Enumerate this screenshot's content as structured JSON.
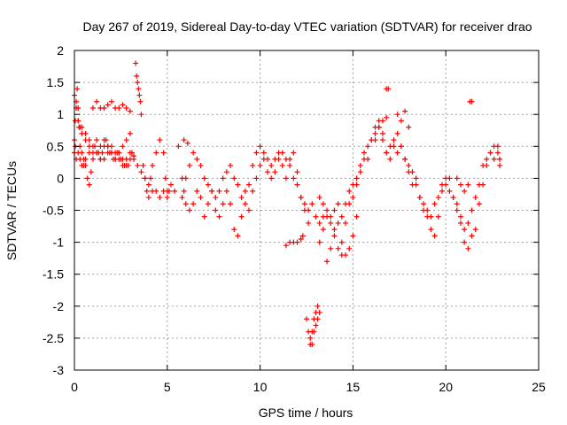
{
  "chart_data": {
    "type": "scatter",
    "title": "Day 267 of 2019, Sidereal Day-to-day VTEC variation (SDTVAR) for receiver drao",
    "xlabel": "GPS time / hours",
    "ylabel": "SDTVAR / TECUs",
    "xlim": [
      0,
      25
    ],
    "ylim": [
      -3,
      2
    ],
    "xticks": [
      0,
      5,
      10,
      15,
      20,
      25
    ],
    "xtick_labels": [
      "0",
      "5",
      "10",
      "15",
      "20",
      "25"
    ],
    "yticks": [
      -3,
      -2.5,
      -2,
      -1.5,
      -1,
      -0.5,
      0,
      0.5,
      1,
      1.5,
      2
    ],
    "ytick_labels": [
      "-3",
      "-2.5",
      "-2",
      "-1.5",
      "-1",
      "-0.5",
      "0",
      "0.5",
      "1",
      "1.5",
      "2"
    ],
    "grid": true,
    "marker": "+",
    "color": "#ff0000",
    "series": [
      {
        "name": "SDTVAR",
        "x": [
          0.0,
          0.05,
          0.1,
          0.15,
          0.2,
          0.25,
          0.3,
          0.4,
          0.5,
          0.6,
          0.7,
          0.8,
          0.9,
          1.0,
          1.1,
          1.2,
          1.3,
          1.4,
          1.5,
          1.6,
          1.7,
          1.8,
          1.9,
          2.0,
          2.1,
          2.2,
          2.3,
          2.4,
          2.5,
          2.6,
          2.7,
          2.8,
          2.9,
          3.0,
          3.1,
          3.2,
          3.3,
          3.35,
          3.4,
          3.45,
          3.5,
          3.55,
          3.6,
          3.7,
          3.8,
          3.9,
          4.0,
          4.1,
          4.2,
          4.4,
          4.6,
          4.8,
          4.9,
          5.0,
          5.1,
          5.6,
          5.8,
          5.9,
          6.0,
          6.2,
          6.4,
          6.6,
          6.8,
          7.0,
          7.2,
          7.4,
          7.6,
          7.8,
          8.0,
          8.2,
          8.4,
          8.6,
          8.8,
          9.0,
          9.2,
          9.4,
          9.6,
          9.8,
          10.0,
          10.2,
          10.4,
          10.6,
          10.8,
          11.0,
          11.2,
          11.4,
          11.6,
          11.8,
          12.0,
          12.2,
          12.4,
          12.6,
          12.7,
          12.8,
          12.9,
          13.0,
          13.1,
          13.2,
          13.4,
          13.6,
          13.8,
          14.0,
          14.2,
          14.4,
          14.6,
          14.8,
          15.0,
          15.2,
          15.4,
          15.6,
          15.8,
          16.0,
          16.2,
          16.4,
          16.6,
          16.8,
          17.0,
          17.2,
          17.4,
          17.6,
          17.8,
          18.0,
          18.2,
          18.4,
          18.6,
          18.8,
          19.0,
          19.2,
          19.4,
          19.6,
          19.8,
          20.0,
          20.2,
          20.4,
          20.6,
          20.8,
          21.0,
          21.2,
          21.4,
          21.6,
          21.8,
          22.0,
          22.2,
          22.4,
          22.6,
          22.8,
          22.9,
          0.0,
          0.05,
          0.1,
          0.2,
          0.3,
          0.4,
          0.5,
          0.6,
          0.8,
          1.0,
          1.2,
          1.4,
          1.6,
          1.8,
          2.0,
          2.2,
          2.4,
          2.6,
          2.8,
          3.0,
          3.2,
          3.4,
          3.6,
          3.8,
          4.0,
          4.2,
          4.4,
          4.6,
          4.8,
          5.0,
          5.2,
          5.4,
          5.8,
          6.0,
          6.2,
          6.4,
          6.6,
          6.8,
          7.0,
          7.2,
          7.4,
          7.6,
          7.8,
          8.0,
          8.2,
          8.4,
          8.6,
          8.8,
          9.0,
          9.2,
          9.4,
          9.6,
          9.8,
          10.0,
          10.2,
          10.4,
          10.6,
          10.8,
          11.0,
          11.2,
          11.4,
          11.6,
          11.8,
          12.0,
          12.2,
          12.4,
          12.6,
          12.8,
          13.0,
          13.2,
          13.4,
          13.6,
          13.8,
          14.0,
          14.2,
          14.4,
          14.6,
          14.8,
          15.0,
          15.2,
          15.4,
          15.6,
          15.8,
          16.0,
          16.2,
          16.4,
          16.6,
          16.8,
          17.0,
          17.2,
          17.4,
          17.6,
          17.8,
          18.0,
          18.2,
          18.4,
          18.6,
          18.8,
          19.0,
          19.2,
          19.4,
          19.6,
          19.8,
          20.0,
          20.2,
          20.4,
          20.6,
          20.8,
          21.0,
          21.2,
          21.4,
          21.6,
          21.8,
          22.0,
          22.2,
          22.4,
          22.6,
          22.8,
          22.9,
          0.0,
          0.1,
          0.2,
          0.3,
          0.4,
          0.6,
          0.8,
          1.0,
          1.2,
          1.4,
          1.6,
          1.8,
          2.0,
          2.2,
          2.4,
          2.6,
          2.8,
          3.0,
          1.0,
          1.2,
          1.4,
          1.6,
          1.8,
          2.0,
          2.2,
          2.4,
          2.6,
          2.8,
          3.0,
          0.2,
          0.4,
          0.6,
          0.8,
          11.4,
          11.6,
          11.8,
          12.0,
          12.2,
          12.3,
          12.5,
          12.6,
          12.7,
          12.8,
          12.9,
          13.0,
          13.1,
          13.2,
          13.2,
          13.4,
          13.6,
          13.8,
          14.0,
          14.2,
          14.4,
          14.6,
          14.8,
          15.0,
          15.2,
          5.9,
          6.1,
          16.8,
          16.9,
          21.3,
          21.4,
          16.2,
          16.4,
          16.6,
          16.8,
          17.4,
          17.6,
          17.8,
          18.0,
          20.6,
          20.8,
          21.0,
          21.2
        ],
        "y": [
          0.6,
          0.9,
          1.2,
          1.4,
          1.1,
          0.8,
          0.5,
          0.4,
          0.3,
          0.2,
          0.0,
          -0.1,
          0.1,
          0.3,
          0.5,
          0.6,
          0.4,
          0.3,
          0.4,
          0.5,
          0.6,
          0.5,
          0.4,
          0.4,
          0.3,
          0.3,
          0.4,
          0.4,
          0.3,
          0.3,
          0.2,
          0.2,
          0.2,
          0.3,
          0.4,
          0.35,
          1.8,
          1.6,
          1.5,
          1.4,
          1.3,
          1.2,
          1.0,
          0.2,
          0.0,
          -0.2,
          -0.3,
          0.0,
          0.2,
          0.4,
          0.6,
          0.4,
          0.0,
          -0.3,
          -0.2,
          0.5,
          0.0,
          -0.2,
          -0.4,
          -0.5,
          -0.4,
          -0.2,
          -0.3,
          -0.6,
          -0.4,
          -0.2,
          -0.5,
          -0.6,
          -0.4,
          -0.2,
          -0.4,
          -0.8,
          -0.9,
          -0.6,
          -0.4,
          -0.5,
          -0.2,
          0.0,
          0.2,
          0.3,
          0.1,
          0.0,
          0.3,
          0.4,
          0.2,
          0.0,
          0.3,
          0.4,
          0.1,
          -0.3,
          -0.5,
          -0.7,
          -2.6,
          -2.4,
          -2.2,
          -2.1,
          -2.0,
          -1.0,
          -0.8,
          -1.3,
          -1.1,
          -0.9,
          -1.1,
          -1.0,
          -0.7,
          -0.4,
          -0.3,
          -0.1,
          0.1,
          0.3,
          0.5,
          0.6,
          0.8,
          0.9,
          0.7,
          0.4,
          0.5,
          0.6,
          0.7,
          0.5,
          0.3,
          0.1,
          -0.1,
          0.0,
          -0.3,
          -0.5,
          -0.6,
          -0.8,
          -0.9,
          -0.6,
          -0.2,
          -0.1,
          0.0,
          -0.3,
          -0.5,
          -0.7,
          -1.0,
          -1.1,
          -0.9,
          -0.8,
          -0.4,
          -0.1,
          0.2,
          0.4,
          0.3,
          0.5,
          0.2,
          0.4,
          0.5,
          0.3,
          0.4,
          0.3,
          0.2,
          0.2,
          0.3,
          0.4,
          0.5,
          0.4,
          0.3,
          0.3,
          0.4,
          0.5,
          0.4,
          0.3,
          0.2,
          0.3,
          0.4,
          0.3,
          0.2,
          0.1,
          0.0,
          -0.1,
          -0.2,
          -0.2,
          -0.3,
          -0.2,
          -0.2,
          -0.1,
          -0.2,
          -0.3,
          0.0,
          0.2,
          0.4,
          0.3,
          0.2,
          0.0,
          -0.1,
          -0.2,
          -0.3,
          -0.2,
          0.0,
          0.1,
          0.2,
          0.0,
          -0.1,
          -0.3,
          -0.2,
          -0.1,
          0.2,
          0.4,
          0.5,
          0.4,
          0.3,
          0.2,
          0.1,
          0.3,
          0.4,
          0.3,
          0.2,
          0.0,
          -0.1,
          -0.3,
          -0.4,
          -0.5,
          -0.4,
          -0.6,
          -0.7,
          -0.6,
          -0.6,
          -0.7,
          -0.8,
          -0.7,
          -0.6,
          -0.4,
          -0.2,
          -0.1,
          0.0,
          0.2,
          0.4,
          0.3,
          0.6,
          0.7,
          0.8,
          0.6,
          0.4,
          0.3,
          0.5,
          0.4,
          0.5,
          0.3,
          0.2,
          0.1,
          -0.1,
          -0.3,
          -0.4,
          -0.5,
          -0.6,
          -0.4,
          -0.3,
          -0.1,
          0.0,
          -0.2,
          -0.3,
          -0.4,
          -0.6,
          -0.8,
          -0.7,
          -0.5,
          -0.3,
          -0.1,
          0.2,
          0.3,
          0.4,
          0.5,
          0.4,
          0.3,
          1.3,
          1.1,
          0.9,
          0.8,
          0.7,
          0.6,
          0.5,
          0.4,
          0.4,
          0.5,
          0.6,
          0.5,
          0.4,
          0.3,
          0.4,
          0.5,
          0.6,
          0.7,
          1.1,
          1.2,
          1.1,
          1.1,
          1.15,
          1.2,
          1.1,
          1.1,
          1.15,
          1.1,
          1.05,
          0.9,
          0.8,
          0.7,
          0.6,
          -1.05,
          -1.0,
          -1.0,
          -1.0,
          -0.95,
          -0.9,
          -2.2,
          -2.4,
          -2.5,
          -2.6,
          -2.4,
          -2.3,
          -2.2,
          -2.1,
          -0.3,
          -0.4,
          -0.5,
          -0.6,
          -0.5,
          -0.4,
          -1.2,
          -1.2,
          -1.1,
          -0.9,
          -0.6,
          0.6,
          0.55,
          1.4,
          1.4,
          1.2,
          1.2,
          0.6,
          0.8,
          0.9,
          0.95,
          1.0,
          0.9,
          1.05,
          0.8,
          0.0,
          -0.1,
          -0.2,
          -0.1
        ]
      }
    ]
  }
}
